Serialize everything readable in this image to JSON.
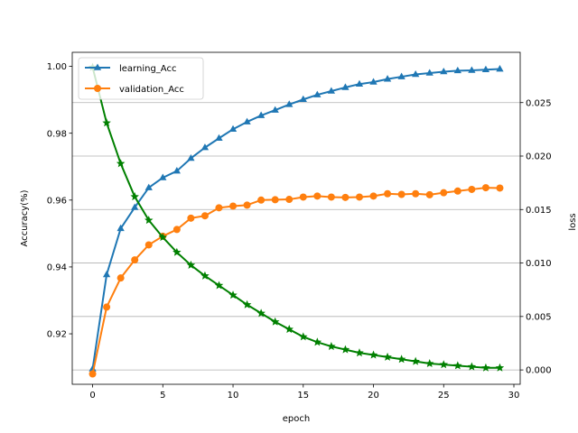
{
  "chart_data": {
    "type": "line",
    "title": "",
    "xlabel": "epoch",
    "ylabel_left": "Accuracy(%)",
    "ylabel_right": "loss",
    "xlim": [
      -1.45,
      30.45
    ],
    "ylim_left": [
      0.9049,
      1.0042
    ],
    "ylim_right": [
      -0.00134,
      0.0297
    ],
    "x_ticks": [
      0,
      5,
      10,
      15,
      20,
      25,
      30
    ],
    "y_ticks_left": [
      0.92,
      0.94,
      0.96,
      0.98,
      1.0
    ],
    "y_ticks_left_labels": [
      "0.92",
      "0.94",
      "0.96",
      "0.98",
      "1.00"
    ],
    "y_ticks_right": [
      0.0,
      0.005,
      0.01,
      0.015,
      0.02,
      0.025
    ],
    "y_ticks_right_labels": [
      "0.000",
      "0.005",
      "0.010",
      "0.015",
      "0.020",
      "0.025"
    ],
    "grid": "horizontal lines at right-axis ticks",
    "legend_position": "top-left",
    "x": [
      0,
      1,
      2,
      3,
      4,
      5,
      6,
      7,
      8,
      9,
      10,
      11,
      12,
      13,
      14,
      15,
      16,
      17,
      18,
      19,
      20,
      21,
      22,
      23,
      24,
      25,
      26,
      27,
      28,
      29
    ],
    "series": [
      {
        "name": "learning_Acc",
        "axis": "left",
        "color": "#1f77b4",
        "marker": "triangle",
        "values": [
          0.9095,
          0.9377,
          0.9515,
          0.9578,
          0.9637,
          0.9667,
          0.9687,
          0.9725,
          0.9757,
          0.9785,
          0.9812,
          0.9834,
          0.9853,
          0.9869,
          0.9886,
          0.9901,
          0.9915,
          0.9926,
          0.9937,
          0.9947,
          0.9953,
          0.9962,
          0.9969,
          0.9976,
          0.998,
          0.9984,
          0.9987,
          0.9988,
          0.999,
          0.9992
        ]
      },
      {
        "name": "validation_Acc",
        "axis": "left",
        "color": "#ff7f0e",
        "marker": "circle",
        "values": [
          0.908,
          0.928,
          0.9367,
          0.9421,
          0.9466,
          0.9492,
          0.9512,
          0.9546,
          0.9553,
          0.9577,
          0.9582,
          0.9585,
          0.96,
          0.9601,
          0.9602,
          0.9609,
          0.9612,
          0.9609,
          0.9608,
          0.9609,
          0.9612,
          0.9619,
          0.9617,
          0.9619,
          0.9616,
          0.9622,
          0.9627,
          0.9632,
          0.9637,
          0.9636
        ]
      },
      {
        "name": "loss",
        "axis": "right",
        "color": "#008000",
        "marker": "star",
        "values": [
          0.0283,
          0.0231,
          0.0193,
          0.0162,
          0.014,
          0.0124,
          0.011,
          0.0098,
          0.0088,
          0.0079,
          0.007,
          0.0061,
          0.0053,
          0.0045,
          0.0038,
          0.0031,
          0.0026,
          0.0022,
          0.0019,
          0.0016,
          0.0014,
          0.0012,
          0.001,
          0.0008,
          0.0006,
          0.0005,
          0.0004,
          0.0003,
          0.0002,
          0.0002
        ]
      }
    ]
  }
}
